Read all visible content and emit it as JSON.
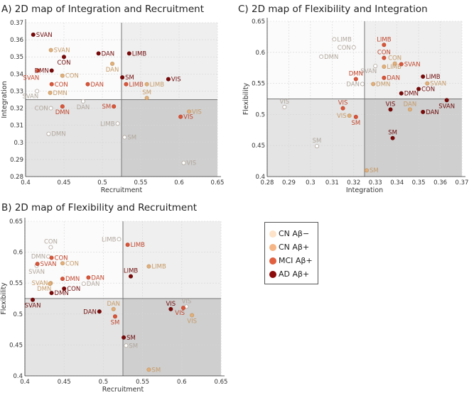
{
  "legend": [
    {
      "name": "CN Aβ−",
      "color": "#fde3c8",
      "label_color": "#b0a69c",
      "point_fill": "#ffffff",
      "point_stroke": "#b0a69c"
    },
    {
      "name": "CN Aβ+",
      "color": "#f5b584",
      "label_color": "#c59a68",
      "point_fill": "#e3b07a",
      "point_stroke": "#c59a68"
    },
    {
      "name": "MCI Aβ+",
      "color": "#e0603f",
      "label_color": "#c0472e",
      "point_fill": "#d9573a",
      "point_stroke": "#c0472e"
    },
    {
      "name": "AD Aβ+",
      "color": "#8b0a0a",
      "label_color": "#6e0a0a",
      "point_fill": "#7a0a0a",
      "point_stroke": "#6e0a0a"
    }
  ],
  "chart_data": [
    {
      "type": "scatter",
      "panel": "A)",
      "title": "2D map of Integration and Recruitment",
      "xlabel": "Recruitment",
      "ylabel": "Integration",
      "xlim": [
        0.4,
        0.65
      ],
      "ylim": [
        0.28,
        0.37
      ],
      "xticks": [
        "0.4",
        "0.45",
        "0.5",
        "0.55",
        "0.6",
        "0.65"
      ],
      "yticks": [
        "0.28",
        "0.29",
        "0.3",
        "0.31",
        "0.32",
        "0.33",
        "0.34",
        "0.35",
        "0.36",
        "0.37"
      ],
      "grid": true,
      "thresholds": {
        "x": 0.525,
        "y": 0.325
      },
      "series": [
        {
          "name": "CN Aβ−",
          "points": [
            {
              "label": "SVAN",
              "x": 0.415,
              "y": 0.33
            },
            {
              "label": "CON",
              "x": 0.433,
              "y": 0.32
            },
            {
              "label": "DAN",
              "x": 0.475,
              "y": 0.324
            },
            {
              "label": "DMN",
              "x": 0.43,
              "y": 0.305
            },
            {
              "label": "LIMB",
              "x": 0.52,
              "y": 0.311
            },
            {
              "label": "SM",
              "x": 0.529,
              "y": 0.303
            },
            {
              "label": "VIS",
              "x": 0.606,
              "y": 0.288
            }
          ]
        },
        {
          "name": "CN Aβ+",
          "points": [
            {
              "label": "SVAN",
              "x": 0.433,
              "y": 0.354
            },
            {
              "label": "CON",
              "x": 0.448,
              "y": 0.339
            },
            {
              "label": "DMN",
              "x": 0.432,
              "y": 0.329
            },
            {
              "label": "DAN",
              "x": 0.513,
              "y": 0.346
            },
            {
              "label": "LIMB",
              "x": 0.558,
              "y": 0.334
            },
            {
              "label": "SM",
              "x": 0.558,
              "y": 0.326
            },
            {
              "label": "VIS",
              "x": 0.613,
              "y": 0.318
            }
          ]
        },
        {
          "name": "MCI Aβ+",
          "points": [
            {
              "label": "SVAN",
              "x": 0.416,
              "y": 0.342
            },
            {
              "label": "CON",
              "x": 0.434,
              "y": 0.334
            },
            {
              "label": "DAN",
              "x": 0.481,
              "y": 0.334
            },
            {
              "label": "DMN",
              "x": 0.448,
              "y": 0.321
            },
            {
              "label": "SM",
              "x": 0.515,
              "y": 0.321
            },
            {
              "label": "LIMB",
              "x": 0.531,
              "y": 0.334
            },
            {
              "label": "VIS",
              "x": 0.602,
              "y": 0.315
            }
          ]
        },
        {
          "name": "AD Aβ+",
          "points": [
            {
              "label": "SVAN",
              "x": 0.41,
              "y": 0.363
            },
            {
              "label": "CON",
              "x": 0.45,
              "y": 0.35
            },
            {
              "label": "DMN",
              "x": 0.434,
              "y": 0.342
            },
            {
              "label": "DAN",
              "x": 0.495,
              "y": 0.352
            },
            {
              "label": "LIMB",
              "x": 0.535,
              "y": 0.352
            },
            {
              "label": "SM",
              "x": 0.526,
              "y": 0.338
            },
            {
              "label": "VIS",
              "x": 0.586,
              "y": 0.337
            }
          ]
        }
      ]
    },
    {
      "type": "scatter",
      "panel": "B)",
      "title": "2D map of Flexibility and Recruitment",
      "xlabel": "Recruitment",
      "ylabel": "Flexibility",
      "xlim": [
        0.4,
        0.65
      ],
      "ylim": [
        0.4,
        0.65
      ],
      "xticks": [
        "0.4",
        "0.45",
        "0.5",
        "0.55",
        "0.6",
        "0.65"
      ],
      "yticks": [
        "0.4",
        "0.45",
        "0.5",
        "0.55",
        "0.6",
        "0.65"
      ],
      "grid": true,
      "thresholds": {
        "x": 0.525,
        "y": 0.525
      },
      "series": [
        {
          "name": "CN Aβ−",
          "points": [
            {
              "label": "CON",
              "x": 0.433,
              "y": 0.608
            },
            {
              "label": "DMN",
              "x": 0.43,
              "y": 0.593
            },
            {
              "label": "SVAN",
              "x": 0.415,
              "y": 0.578
            },
            {
              "label": "DAN",
              "x": 0.475,
              "y": 0.549
            },
            {
              "label": "LIMB",
              "x": 0.52,
              "y": 0.621
            },
            {
              "label": "SM",
              "x": 0.529,
              "y": 0.449
            },
            {
              "label": "VIS",
              "x": 0.606,
              "y": 0.512
            }
          ]
        },
        {
          "name": "CN Aβ+",
          "points": [
            {
              "label": "CON",
              "x": 0.448,
              "y": 0.582
            },
            {
              "label": "SVAN",
              "x": 0.433,
              "y": 0.55
            },
            {
              "label": "DMN",
              "x": 0.432,
              "y": 0.549
            },
            {
              "label": "DAN",
              "x": 0.513,
              "y": 0.508
            },
            {
              "label": "LIMB",
              "x": 0.558,
              "y": 0.577
            },
            {
              "label": "SM",
              "x": 0.558,
              "y": 0.41
            },
            {
              "label": "VIS",
              "x": 0.613,
              "y": 0.498
            }
          ]
        },
        {
          "name": "MCI Aβ+",
          "points": [
            {
              "label": "CON",
              "x": 0.434,
              "y": 0.591
            },
            {
              "label": "SVAN",
              "x": 0.416,
              "y": 0.581
            },
            {
              "label": "DMN",
              "x": 0.448,
              "y": 0.557
            },
            {
              "label": "DAN",
              "x": 0.481,
              "y": 0.559
            },
            {
              "label": "LIMB",
              "x": 0.531,
              "y": 0.612
            },
            {
              "label": "SM",
              "x": 0.515,
              "y": 0.496
            },
            {
              "label": "VIS",
              "x": 0.602,
              "y": 0.51
            }
          ]
        },
        {
          "name": "AD Aβ+",
          "points": [
            {
              "label": "SVAN",
              "x": 0.41,
              "y": 0.523
            },
            {
              "label": "DMN",
              "x": 0.434,
              "y": 0.534
            },
            {
              "label": "CON",
              "x": 0.45,
              "y": 0.541
            },
            {
              "label": "DAN",
              "x": 0.495,
              "y": 0.504
            },
            {
              "label": "LIMB",
              "x": 0.535,
              "y": 0.561
            },
            {
              "label": "SM",
              "x": 0.526,
              "y": 0.462
            },
            {
              "label": "VIS",
              "x": 0.586,
              "y": 0.508
            }
          ]
        }
      ]
    },
    {
      "type": "scatter",
      "panel": "C)",
      "title": "2D map of Flexibility and Integration",
      "xlabel": "Integration",
      "ylabel": "Flexibility",
      "xlim": [
        0.28,
        0.37
      ],
      "ylim": [
        0.4,
        0.65
      ],
      "xticks": [
        "0.28",
        "0.29",
        "0.3",
        "0.31",
        "0.32",
        "0.33",
        "0.34",
        "0.35",
        "0.36",
        "0.37"
      ],
      "yticks": [
        "0.4",
        "0.45",
        "0.5",
        "0.55",
        "0.6",
        "0.65"
      ],
      "grid": true,
      "thresholds": {
        "x": 0.325,
        "y": 0.525
      },
      "series": [
        {
          "name": "CN Aβ−",
          "points": [
            {
              "label": "LIMB",
              "x": 0.311,
              "y": 0.621
            },
            {
              "label": "CON",
              "x": 0.32,
              "y": 0.608
            },
            {
              "label": "DMN",
              "x": 0.305,
              "y": 0.593
            },
            {
              "label": "SVAN",
              "x": 0.33,
              "y": 0.578
            },
            {
              "label": "DAN",
              "x": 0.324,
              "y": 0.549
            },
            {
              "label": "VIS",
              "x": 0.288,
              "y": 0.512
            },
            {
              "label": "SM",
              "x": 0.303,
              "y": 0.449
            }
          ]
        },
        {
          "name": "CN Aβ+",
          "points": [
            {
              "label": "CON",
              "x": 0.339,
              "y": 0.582
            },
            {
              "label": "LIMB",
              "x": 0.334,
              "y": 0.577
            },
            {
              "label": "DMN",
              "x": 0.329,
              "y": 0.549
            },
            {
              "label": "SVAN",
              "x": 0.354,
              "y": 0.55
            },
            {
              "label": "DAN",
              "x": 0.346,
              "y": 0.508
            },
            {
              "label": "VIS",
              "x": 0.318,
              "y": 0.498
            },
            {
              "label": "SM",
              "x": 0.326,
              "y": 0.41
            }
          ]
        },
        {
          "name": "MCI Aβ+",
          "points": [
            {
              "label": "LIMB",
              "x": 0.334,
              "y": 0.612
            },
            {
              "label": "CON",
              "x": 0.334,
              "y": 0.591
            },
            {
              "label": "SVAN",
              "x": 0.342,
              "y": 0.581
            },
            {
              "label": "DMN",
              "x": 0.321,
              "y": 0.557
            },
            {
              "label": "DAN",
              "x": 0.334,
              "y": 0.559
            },
            {
              "label": "VIS",
              "x": 0.315,
              "y": 0.51
            },
            {
              "label": "SM",
              "x": 0.321,
              "y": 0.496
            }
          ]
        },
        {
          "name": "AD Aβ+",
          "points": [
            {
              "label": "LIMB",
              "x": 0.352,
              "y": 0.561
            },
            {
              "label": "CON",
              "x": 0.35,
              "y": 0.541
            },
            {
              "label": "DMN",
              "x": 0.342,
              "y": 0.534
            },
            {
              "label": "SVAN",
              "x": 0.363,
              "y": 0.523
            },
            {
              "label": "VIS",
              "x": 0.337,
              "y": 0.508
            },
            {
              "label": "DAN",
              "x": 0.352,
              "y": 0.504
            },
            {
              "label": "SM",
              "x": 0.338,
              "y": 0.462
            }
          ]
        }
      ]
    }
  ]
}
